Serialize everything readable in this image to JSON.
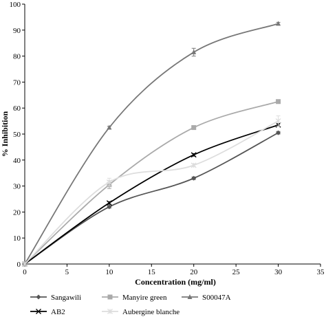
{
  "chart_data": {
    "type": "line",
    "xlabel": "Concentration (mg/ml)",
    "ylabel": "% Inhibition",
    "xlim": [
      0,
      35
    ],
    "ylim": [
      0,
      100
    ],
    "xticks": [
      0,
      5,
      10,
      15,
      20,
      25,
      30,
      35
    ],
    "yticks": [
      0,
      10,
      20,
      30,
      40,
      50,
      60,
      70,
      80,
      90,
      100
    ],
    "grid": false,
    "legend_position": "bottom",
    "series": [
      {
        "name": "Sangawili",
        "color": "#555555",
        "marker": "diamond",
        "x": [
          0,
          10,
          20,
          30
        ],
        "y": [
          0,
          22,
          33,
          50.5
        ],
        "err": [
          0,
          0.5,
          0.5,
          0.5
        ]
      },
      {
        "name": "Manyire green",
        "color": "#aaaaaa",
        "marker": "square",
        "x": [
          0,
          10,
          20,
          30
        ],
        "y": [
          0,
          30.5,
          52.5,
          62.5
        ],
        "err": [
          0,
          1.5,
          0.5,
          0.5
        ]
      },
      {
        "name": "S00047A",
        "color": "#777777",
        "marker": "triangle",
        "x": [
          0,
          10,
          20,
          30
        ],
        "y": [
          0,
          52.5,
          81.5,
          92.5
        ],
        "err": [
          0,
          0.5,
          1.5,
          0.5
        ]
      },
      {
        "name": "AB2",
        "color": "#000000",
        "marker": "x",
        "x": [
          0,
          10,
          20,
          30
        ],
        "y": [
          0,
          23.5,
          42,
          53.5
        ],
        "err": [
          0,
          0.5,
          0.5,
          0.5
        ]
      },
      {
        "name": "Aubergine blanche",
        "color": "#dddddd",
        "marker": "star",
        "x": [
          0,
          10,
          20,
          30
        ],
        "y": [
          0,
          31.5,
          38,
          55
        ],
        "err": [
          0,
          1.5,
          0.5,
          2
        ]
      }
    ]
  }
}
